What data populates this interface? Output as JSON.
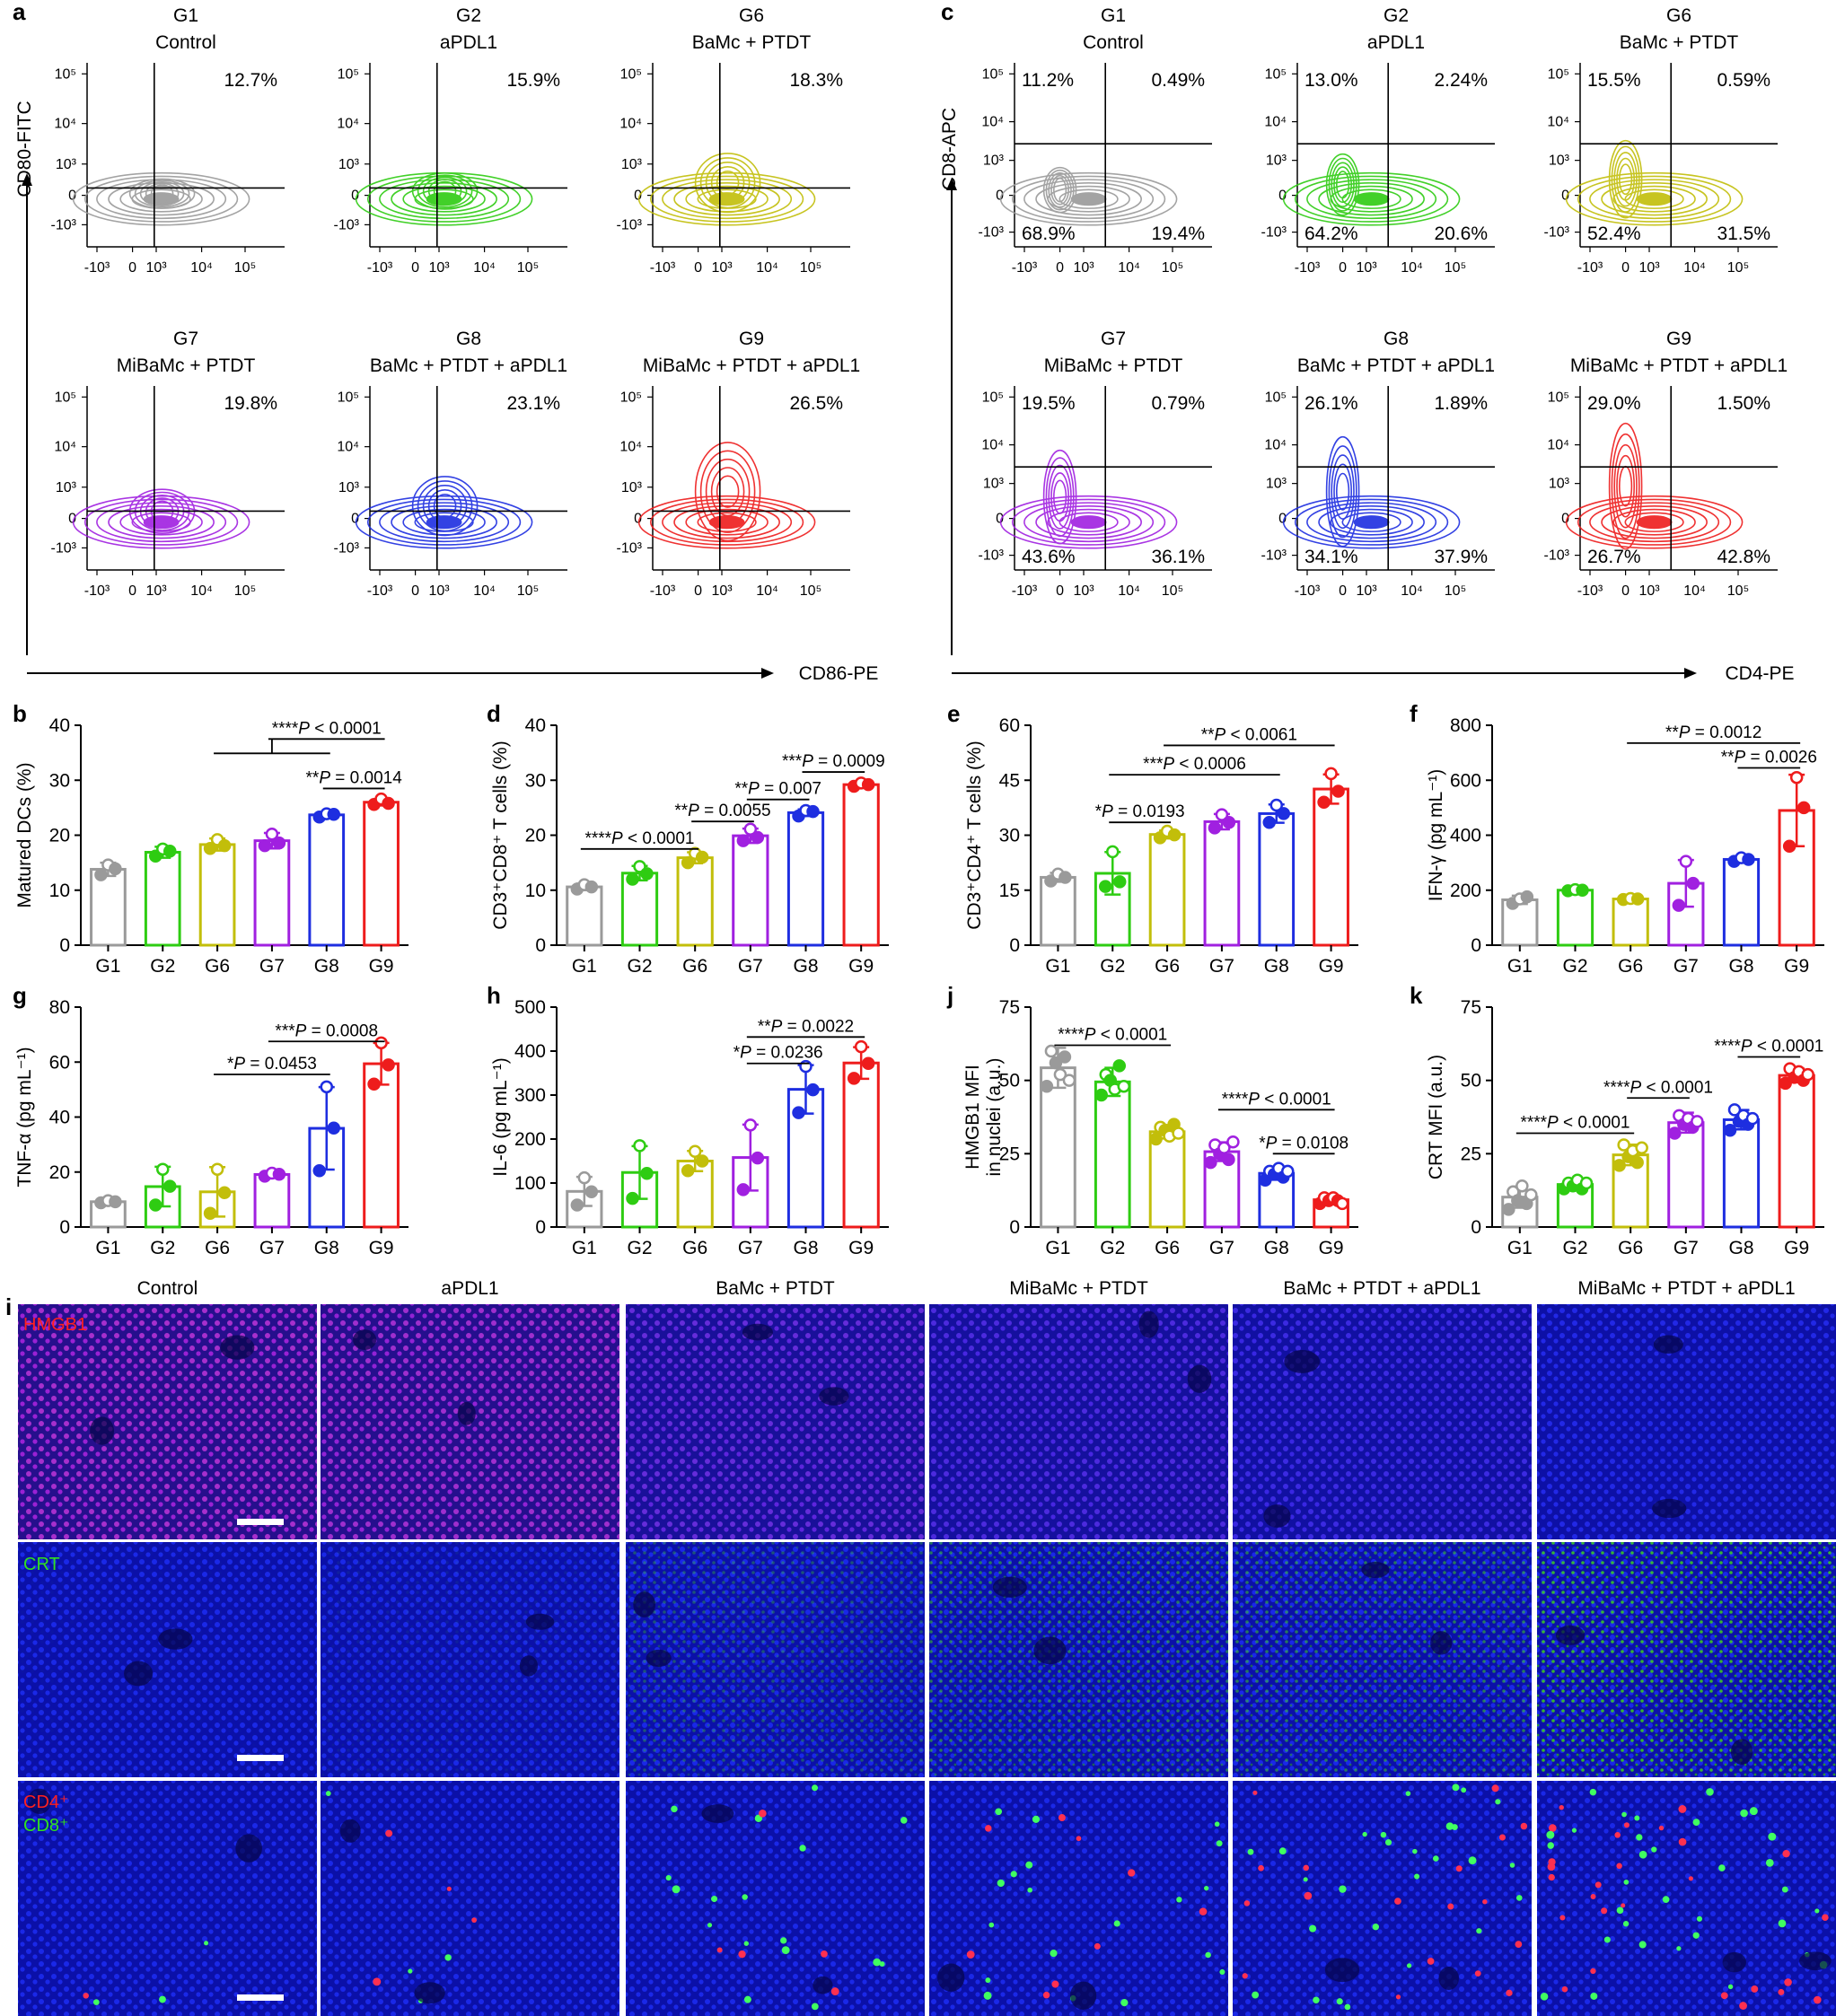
{
  "panel_letters": {
    "a": "a",
    "b": "b",
    "c": "c",
    "d": "d",
    "e": "e",
    "f": "f",
    "g": "g",
    "h": "h",
    "i": "i",
    "j": "j",
    "k": "k"
  },
  "colors": {
    "G1": "#9a9a9a",
    "G2": "#2ecc12",
    "G6": "#c2be0a",
    "G7": "#a020e0",
    "G8": "#1e2ee0",
    "G9": "#ee1c1c"
  },
  "flow_axes": {
    "ticks": [
      "-10³",
      "0",
      "10³",
      "10⁴",
      "10⁵"
    ],
    "y_ticks": [
      "10⁵",
      "10⁴",
      "10³",
      "0",
      "-10³"
    ],
    "a_ylabel": "CD80-FITC",
    "a_xlabel": "CD86-PE",
    "c_ylabel": "CD8-APC",
    "c_xlabel": "CD4-PE"
  },
  "flow_a": [
    {
      "code": "G1",
      "name": "Control",
      "pct": "12.7%",
      "color": "#9a9a9a"
    },
    {
      "code": "G2",
      "name": "aPDL1",
      "pct": "15.9%",
      "color": "#2ecc12"
    },
    {
      "code": "G6",
      "name": "BaMc + PTDT",
      "pct": "18.3%",
      "color": "#c2be0a"
    },
    {
      "code": "G7",
      "name": "MiBaMc + PTDT",
      "pct": "19.8%",
      "color": "#a020e0"
    },
    {
      "code": "G8",
      "name": "BaMc + PTDT + aPDL1",
      "pct": "23.1%",
      "color": "#1e2ee0"
    },
    {
      "code": "G9",
      "name": "MiBaMc + PTDT + aPDL1",
      "pct": "26.5%",
      "color": "#ee1c1c"
    }
  ],
  "flow_c": [
    {
      "code": "G1",
      "name": "Control",
      "tl": "11.2%",
      "tr": "0.49%",
      "bl": "68.9%",
      "br": "19.4%",
      "color": "#9a9a9a"
    },
    {
      "code": "G2",
      "name": "aPDL1",
      "tl": "13.0%",
      "tr": "2.24%",
      "bl": "64.2%",
      "br": "20.6%",
      "color": "#2ecc12"
    },
    {
      "code": "G6",
      "name": "BaMc + PTDT",
      "tl": "15.5%",
      "tr": "0.59%",
      "bl": "52.4%",
      "br": "31.5%",
      "color": "#c2be0a"
    },
    {
      "code": "G7",
      "name": "MiBaMc + PTDT",
      "tl": "19.5%",
      "tr": "0.79%",
      "bl": "43.6%",
      "br": "36.1%",
      "color": "#a020e0"
    },
    {
      "code": "G8",
      "name": "BaMc + PTDT + aPDL1",
      "tl": "26.1%",
      "tr": "1.89%",
      "bl": "34.1%",
      "br": "37.9%",
      "color": "#1e2ee0"
    },
    {
      "code": "G9",
      "name": "MiBaMc + PTDT + aPDL1",
      "tl": "29.0%",
      "tr": "1.50%",
      "bl": "26.7%",
      "br": "42.8%",
      "color": "#ee1c1c"
    }
  ],
  "chart_data": [
    {
      "id": "b",
      "type": "bar",
      "categories": [
        "G1",
        "G2",
        "G6",
        "G7",
        "G8",
        "G9"
      ],
      "values": [
        13.8,
        16.9,
        18.3,
        19.0,
        23.7,
        26.0
      ],
      "errors": [
        1.2,
        1.0,
        1.1,
        1.4,
        0.4,
        0.6
      ],
      "ylabel": "Matured DCs (%)",
      "ylim": [
        0,
        40
      ],
      "yticks": [
        0,
        10,
        20,
        30,
        40
      ],
      "points": [
        [
          12.8,
          14.6,
          13.9
        ],
        [
          16.2,
          17.5,
          17.1
        ],
        [
          17.6,
          19.2,
          18.1
        ],
        [
          18.1,
          20.2,
          18.6
        ],
        [
          23.3,
          23.9,
          23.8
        ],
        [
          25.6,
          26.6,
          25.8
        ]
      ],
      "annotations": [
        {
          "from": 4,
          "to": 5,
          "y": 28.5,
          "prefix": "**",
          "p": "P",
          "text": " = 0.0014"
        },
        {
          "from": 3,
          "to": 5,
          "y": 37.5,
          "prefix": "****",
          "p": "P",
          "text": " < 0.0001",
          "bracket_from": 2,
          "bracket_to": 4
        }
      ]
    },
    {
      "id": "d",
      "type": "bar",
      "categories": [
        "G1",
        "G2",
        "G6",
        "G7",
        "G8",
        "G9"
      ],
      "values": [
        10.6,
        13.1,
        15.9,
        19.9,
        24.1,
        29.2
      ],
      "errors": [
        0.6,
        1.3,
        1.0,
        1.3,
        0.6,
        0.4
      ],
      "ylabel": "CD3⁺CD8⁺ T cells (%)",
      "ylim": [
        0,
        40
      ],
      "yticks": [
        0,
        10,
        20,
        30,
        40
      ],
      "points": [
        [
          10.2,
          11.0,
          10.6
        ],
        [
          12.0,
          14.3,
          13.0
        ],
        [
          15.0,
          16.7,
          16.0
        ],
        [
          19.0,
          21.1,
          19.6
        ],
        [
          23.5,
          24.5,
          24.3
        ],
        [
          28.9,
          29.5,
          29.2
        ]
      ],
      "annotations": [
        {
          "from": 0,
          "to": 2,
          "y": 17.5,
          "prefix": "****",
          "p": "P",
          "text": " < 0.0001"
        },
        {
          "from": 2,
          "to": 3,
          "y": 22.5,
          "prefix": "**",
          "p": "P",
          "text": " = 0.0055"
        },
        {
          "from": 3,
          "to": 4,
          "y": 26.5,
          "prefix": "**",
          "p": "P",
          "text": " = 0.007"
        },
        {
          "from": 4,
          "to": 5,
          "y": 31.5,
          "prefix": "***",
          "p": "P",
          "text": " = 0.0009"
        }
      ]
    },
    {
      "id": "e",
      "type": "bar",
      "categories": [
        "G1",
        "G2",
        "G6",
        "G7",
        "G8",
        "G9"
      ],
      "values": [
        18.5,
        19.6,
        30.2,
        33.7,
        35.9,
        42.6
      ],
      "errors": [
        1.2,
        5.8,
        1.1,
        2.1,
        2.5,
        4.0
      ],
      "ylabel": "CD3⁺CD4⁺ T cells (%)",
      "ylim": [
        0,
        60
      ],
      "yticks": [
        0,
        15,
        30,
        45,
        60
      ],
      "points": [
        [
          17.5,
          19.4,
          18.5
        ],
        [
          16.0,
          25.5,
          17.3
        ],
        [
          29.3,
          31.1,
          30.1
        ],
        [
          32.0,
          35.6,
          33.5
        ],
        [
          33.5,
          38.2,
          35.9
        ],
        [
          39.0,
          46.8,
          42.0
        ]
      ],
      "annotations": [
        {
          "from": 1,
          "to": 2,
          "y": 33.5,
          "prefix": "*",
          "p": "P",
          "text": " = 0.0193"
        },
        {
          "from": 1,
          "to": 4,
          "y": 46.5,
          "prefix": "***",
          "p": "P",
          "text": " < 0.0006"
        },
        {
          "from": 2,
          "to": 5,
          "y": 54.5,
          "prefix": "**",
          "p": "P",
          "text": " < 0.0061"
        }
      ]
    },
    {
      "id": "f",
      "type": "bar",
      "categories": [
        "G1",
        "G2",
        "G6",
        "G7",
        "G8",
        "G9"
      ],
      "values": [
        165,
        200,
        168,
        225,
        312,
        490
      ],
      "errors": [
        15,
        5,
        5,
        85,
        12,
        130
      ],
      "ylabel": "IFN-γ (pg mL⁻¹)",
      "ylim": [
        0,
        800
      ],
      "yticks": [
        0,
        200,
        400,
        600,
        800
      ],
      "points": [
        [
          152,
          168,
          176
        ],
        [
          198,
          202,
          200
        ],
        [
          166,
          170,
          168
        ],
        [
          145,
          305,
          225
        ],
        [
          305,
          318,
          312
        ],
        [
          360,
          610,
          500
        ]
      ],
      "annotations": [
        {
          "from": 4,
          "to": 5,
          "y": 645,
          "prefix": "**",
          "p": "P",
          "text": " = 0.0026"
        },
        {
          "from": 2,
          "to": 5,
          "y": 735,
          "prefix": "**",
          "p": "P",
          "text": " = 0.0012"
        }
      ]
    },
    {
      "id": "g",
      "type": "bar",
      "categories": [
        "G1",
        "G2",
        "G6",
        "G7",
        "G8",
        "G9"
      ],
      "values": [
        9.2,
        14.7,
        12.8,
        19.1,
        35.9,
        59.4
      ],
      "errors": [
        0.5,
        7.2,
        9.0,
        0.7,
        15.0,
        7.6
      ],
      "ylabel": "TNF-α (pg mL⁻¹)",
      "ylim": [
        0,
        80
      ],
      "yticks": [
        0,
        20,
        40,
        60,
        80
      ],
      "points": [
        [
          8.8,
          9.6,
          9.2
        ],
        [
          8.0,
          21.0,
          14.8
        ],
        [
          5.0,
          21.0,
          12.5
        ],
        [
          18.5,
          19.6,
          19.2
        ],
        [
          20.5,
          51.0,
          36.0
        ],
        [
          52.0,
          67.0,
          59.0
        ]
      ],
      "annotations": [
        {
          "from": 2,
          "to": 4,
          "y": 55.5,
          "prefix": "*",
          "p": "P",
          "text": " = 0.0453"
        },
        {
          "from": 3,
          "to": 5,
          "y": 67.5,
          "prefix": "***",
          "p": "P",
          "text": " = 0.0008"
        }
      ]
    },
    {
      "id": "h",
      "type": "bar",
      "categories": [
        "G1",
        "G2",
        "G6",
        "G7",
        "G8",
        "G9"
      ],
      "values": [
        81,
        124,
        150,
        158,
        313,
        373
      ],
      "errors": [
        33,
        60,
        23,
        75,
        55,
        36
      ],
      "ylabel": "IL-6 (pg mL⁻¹)",
      "ylim": [
        0,
        500
      ],
      "yticks": [
        0,
        100,
        200,
        300,
        400,
        500
      ],
      "points": [
        [
          50,
          112,
          80
        ],
        [
          65,
          185,
          122
        ],
        [
          128,
          172,
          150
        ],
        [
          85,
          232,
          157
        ],
        [
          260,
          365,
          312
        ],
        [
          338,
          410,
          372
        ]
      ],
      "annotations": [
        {
          "from": 3,
          "to": 4,
          "y": 372,
          "prefix": "*",
          "p": "P",
          "text": " = 0.0236"
        },
        {
          "from": 3,
          "to": 5,
          "y": 432,
          "prefix": "**",
          "p": "P",
          "text": " = 0.0022"
        }
      ]
    },
    {
      "id": "j",
      "type": "bar",
      "categories": [
        "G1",
        "G2",
        "G6",
        "G7",
        "G8",
        "G9"
      ],
      "values": [
        54.3,
        49.5,
        32.5,
        25.7,
        18.3,
        9.3
      ],
      "errors": [
        6.8,
        4.8,
        2.3,
        3.2,
        2.2,
        1.2
      ],
      "ylabel": "HMGB1 MFI",
      "ylabel2": "in nuclei (a.u.)",
      "ylim": [
        0,
        75
      ],
      "yticks": [
        0,
        25,
        50,
        75
      ],
      "points": [
        [
          48,
          60,
          56,
          52,
          58,
          50
        ],
        [
          45,
          52,
          50,
          47,
          55,
          48
        ],
        [
          30,
          34,
          33,
          31,
          35,
          32
        ],
        [
          22,
          28,
          25,
          27,
          23,
          29
        ],
        [
          16,
          19,
          18,
          20,
          17,
          19
        ],
        [
          8,
          10,
          9,
          10,
          9,
          8
        ]
      ],
      "annotations": [
        {
          "from": 0,
          "to": 2,
          "y": 62,
          "prefix": "****",
          "p": "P",
          "text": " < 0.0001"
        },
        {
          "from": 3,
          "to": 5,
          "y": 40,
          "prefix": "****",
          "p": "P",
          "text": " < 0.0001"
        },
        {
          "from": 4,
          "to": 5,
          "y": 25,
          "prefix": "*",
          "p": "P",
          "text": " = 0.0108"
        }
      ]
    },
    {
      "id": "k",
      "type": "bar",
      "categories": [
        "G1",
        "G2",
        "G6",
        "G7",
        "G8",
        "G9"
      ],
      "values": [
        10.2,
        14.5,
        24.6,
        35.6,
        36.6,
        51.7
      ],
      "errors": [
        3.6,
        1.7,
        3.5,
        3.4,
        3.3,
        2.3
      ],
      "ylabel": "CRT MFI (a.u.)",
      "ylim": [
        0,
        75
      ],
      "yticks": [
        0,
        25,
        50,
        75
      ],
      "points": [
        [
          6,
          12,
          9,
          14,
          8,
          11
        ],
        [
          13,
          15,
          14,
          16,
          13,
          15
        ],
        [
          21,
          28,
          24,
          26,
          22,
          27
        ],
        [
          32,
          38,
          35,
          37,
          34,
          36
        ],
        [
          33,
          40,
          36,
          38,
          35,
          37
        ],
        [
          49,
          54,
          51,
          53,
          50,
          52
        ]
      ],
      "annotations": [
        {
          "from": 0,
          "to": 2,
          "y": 32,
          "prefix": "****",
          "p": "P",
          "text": " < 0.0001"
        },
        {
          "from": 2,
          "to": 3,
          "y": 44,
          "prefix": "****",
          "p": "P",
          "text": " < 0.0001"
        },
        {
          "from": 4,
          "to": 5,
          "y": 58,
          "prefix": "****",
          "p": "P",
          "text": " < 0.0001"
        }
      ]
    }
  ],
  "micro": {
    "columns": [
      "Control",
      "aPDL1",
      "BaMc + PTDT",
      "MiBaMc + PTDT",
      "BaMc + PTDT + aPDL1",
      "MiBaMc + PTDT + aPDL1"
    ],
    "row1_label": "HMGB1",
    "row2_label": "CRT",
    "row3_label1": "CD4⁺",
    "row3_label2": "CD8⁺"
  }
}
